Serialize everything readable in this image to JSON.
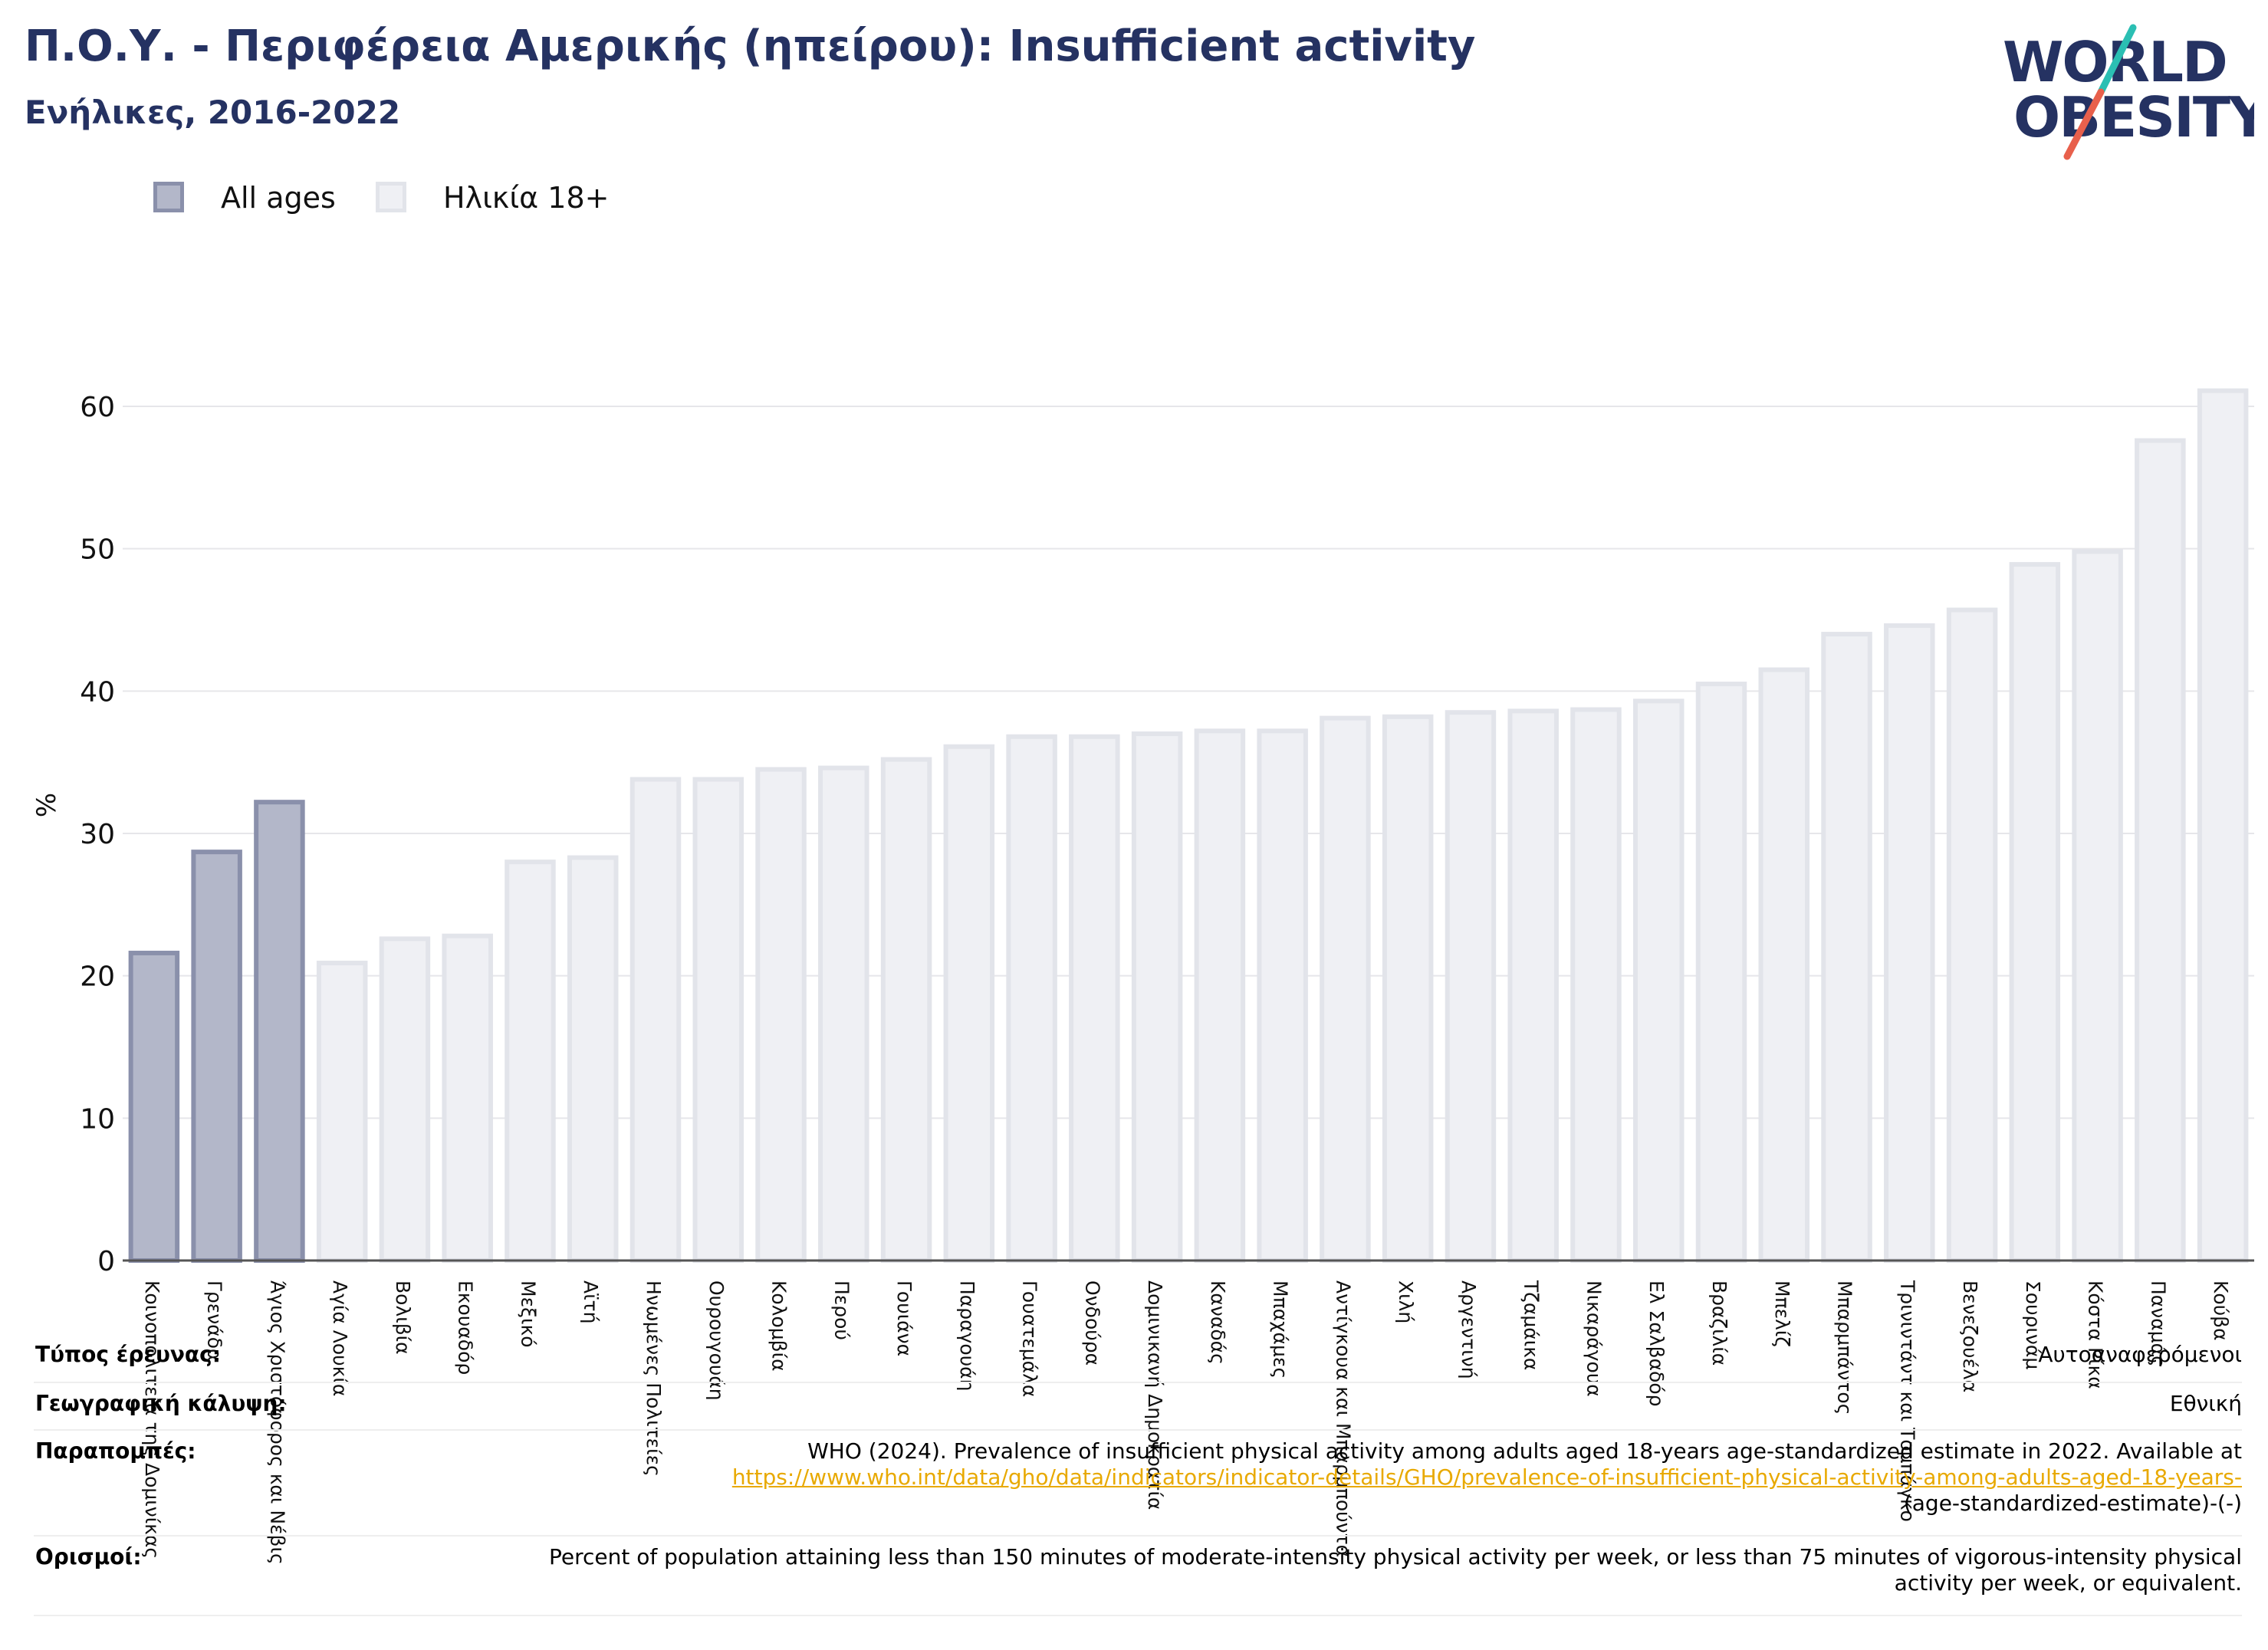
{
  "title": "Π.Ο.Υ. - Περιφέρεια Αμερικής (ηπείρου): Insufficient activity",
  "subtitle": "Ενήλικες, 2016-2022",
  "logo": {
    "line1": "WORLD",
    "line2": "OBESITY",
    "colors": {
      "text": "#253262",
      "slash_top": "#2bbfb3",
      "slash_bottom": "#e8604c"
    }
  },
  "legend": [
    {
      "label": "All ages",
      "color": "#b3b7c9",
      "border": "#8a90ab"
    },
    {
      "label": "Ηλικία 18+",
      "color": "#eff0f4",
      "border": "#e2e4ea"
    }
  ],
  "chart_data": {
    "type": "bar",
    "title": "Π.Ο.Υ. - Περιφέρεια Αμερικής (ηπείρου): Insufficient activity",
    "subtitle": "Ενήλικες, 2016-2022",
    "ylabel": "%",
    "ylim": [
      0,
      62
    ],
    "yticks": [
      0,
      10,
      20,
      30,
      40,
      50,
      60
    ],
    "grid": true,
    "legend_position": "top-left",
    "series": [
      {
        "name": "All ages",
        "color": "#b3b7c9",
        "border": "#8a90ab"
      },
      {
        "name": "Ηλικία 18+",
        "color": "#eff0f4",
        "border": "#e2e4ea"
      }
    ],
    "categories": [
      "Κοινοπολιτεία της Δομινίκας",
      "Γρενάδα",
      "Άγιος Χριστόφορος και Νέβις",
      "Αγία Λουκία",
      "Βολιβία",
      "Εκουαδόρ",
      "Μεξικό",
      "Αϊτή",
      "Ηνωμένες Πολιτείες",
      "Ουρουγουάη",
      "Κολομβία",
      "Περού",
      "Γουιάνα",
      "Παραγουάη",
      "Γουατεμάλα",
      "Ονδούρα",
      "Δομινικανή Δημοκρατία",
      "Καναδάς",
      "Μπαχάμες",
      "Αντίγκουα και Μπαρμπούντα",
      "Χιλή",
      "Αργεντινή",
      "Τζαμάικα",
      "Νικαράγουα",
      "Ελ Σαλβαδόρ",
      "Βραζιλία",
      "Μπελίζ",
      "Μπαρμπάντος",
      "Τρινιντάντ και Τομπάγκο",
      "Βενεζουέλα",
      "Σουρινάμ",
      "Κόστα Ρίκα",
      "Παναμάς",
      "Κούβα"
    ],
    "series_index": [
      0,
      0,
      0,
      1,
      1,
      1,
      1,
      1,
      1,
      1,
      1,
      1,
      1,
      1,
      1,
      1,
      1,
      1,
      1,
      1,
      1,
      1,
      1,
      1,
      1,
      1,
      1,
      1,
      1,
      1,
      1,
      1,
      1,
      1
    ],
    "values": [
      21.6,
      28.7,
      32.2,
      20.9,
      22.6,
      22.8,
      28.0,
      28.3,
      33.8,
      33.8,
      34.5,
      34.6,
      35.2,
      36.1,
      36.8,
      36.8,
      37.0,
      37.2,
      37.2,
      38.1,
      38.2,
      38.5,
      38.6,
      38.7,
      39.3,
      40.5,
      41.5,
      44.0,
      44.6,
      45.7,
      48.9,
      49.8,
      57.6,
      61.1
    ]
  },
  "notes": [
    {
      "label": "Τύπος έρευνας:",
      "value": "Αυτοαναφερόμενοι"
    },
    {
      "label": "Γεωγραφική κάλυψη:",
      "value": "Εθνική"
    },
    {
      "label": "Παραπομπές:",
      "value_pre": "WHO (2024). Prevalence of insufficient physical activity among adults aged 18-years age-standardized estimate in 2022. Available at",
      "link": "https://www.who.int/data/gho/data/indicators/indicator-details/GHO/prevalence-of-insufficient-physical-activity-among-adults-aged-18-years-",
      "value_post": "(age-standardized-estimate)-(-)"
    },
    {
      "label": "Ορισμοί:",
      "value": "Percent of population attaining less than 150 minutes of moderate-intensity physical activity per week, or less than 75 minutes of vigorous-intensity physical activity per week, or equivalent."
    }
  ]
}
